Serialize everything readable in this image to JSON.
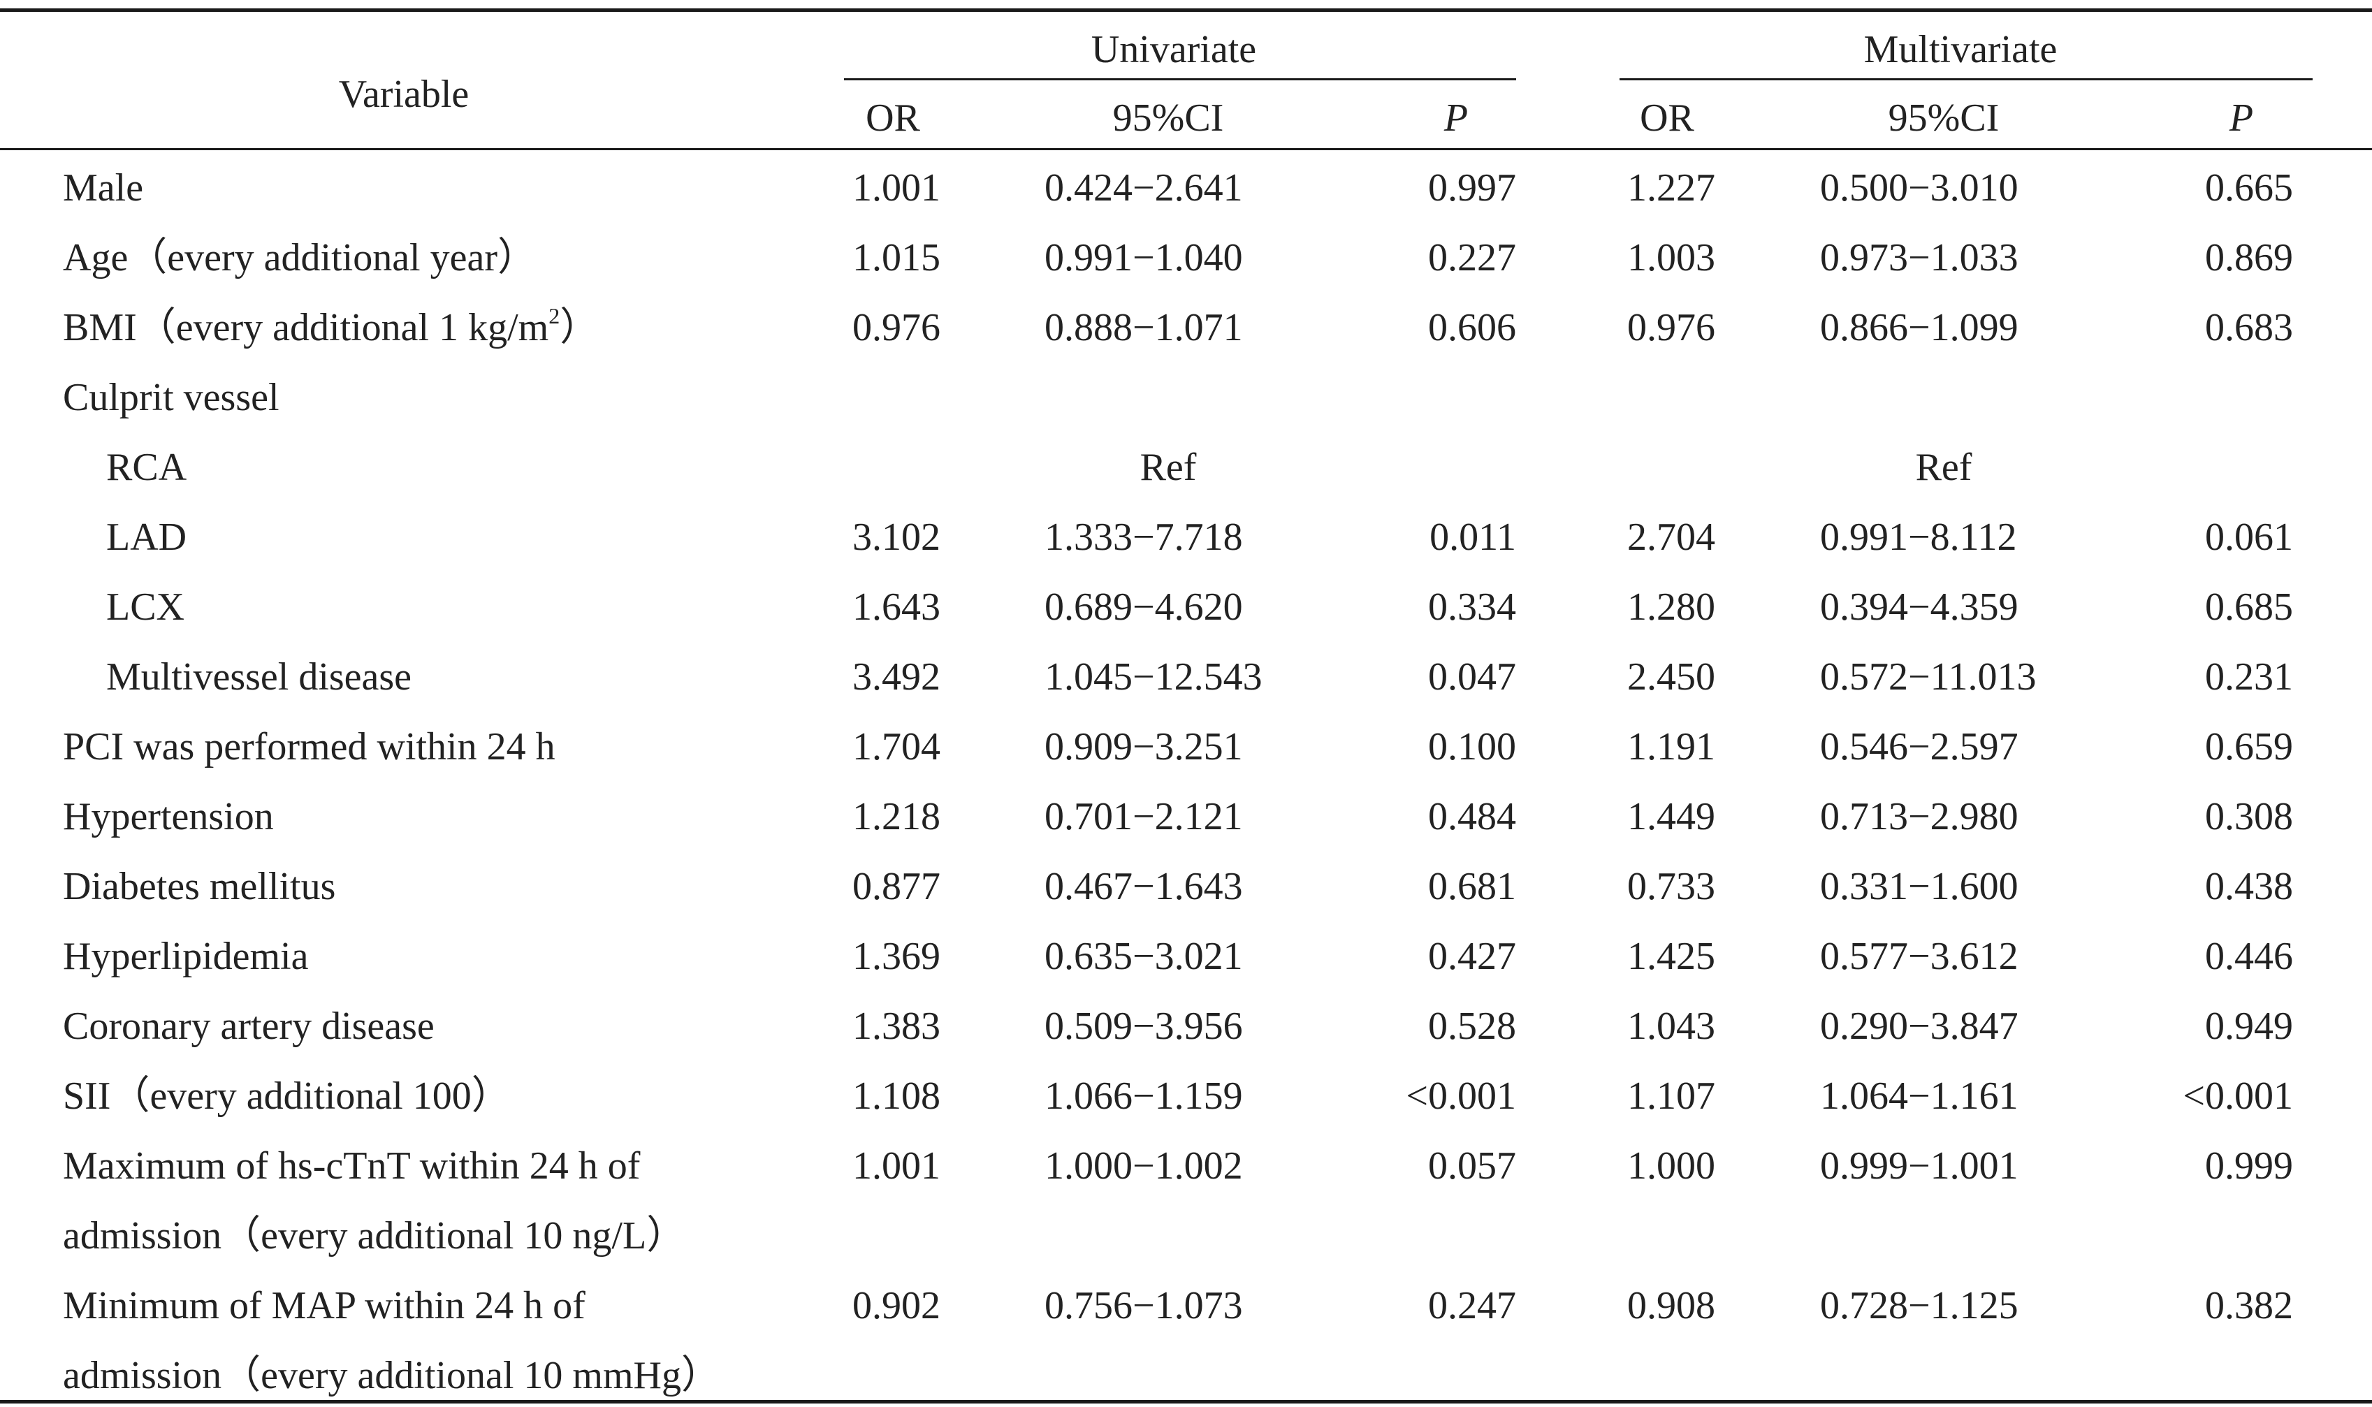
{
  "header": {
    "variable": "Variable",
    "univariate": "Univariate",
    "multivariate": "Multivariate",
    "or": "OR",
    "ci": "95%CI",
    "p": "P"
  },
  "rows": [
    {
      "label": "Male",
      "indent": false,
      "u_or": "1.001",
      "u_ci": "0.424−2.641",
      "u_p": "0.997",
      "m_or": "1.227",
      "m_ci": "0.500−3.010",
      "m_p": "0.665"
    },
    {
      "label": "Age（every additional year）",
      "indent": false,
      "u_or": "1.015",
      "u_ci": "0.991−1.040",
      "u_p": "0.227",
      "m_or": "1.003",
      "m_ci": "0.973−1.033",
      "m_p": "0.869"
    },
    {
      "label": "BMI（every additional 1 kg/m",
      "label_sup": "2",
      "label_tail": "）",
      "indent": false,
      "u_or": "0.976",
      "u_ci": "0.888−1.071",
      "u_p": "0.606",
      "m_or": "0.976",
      "m_ci": "0.866−1.099",
      "m_p": "0.683"
    },
    {
      "label": "Culprit vessel",
      "indent": false
    },
    {
      "label": "RCA",
      "indent": true,
      "u_ref": "Ref",
      "m_ref": "Ref"
    },
    {
      "label": "LAD",
      "indent": true,
      "u_or": "3.102",
      "u_ci": "1.333−7.718",
      "u_p": "0.011",
      "m_or": "2.704",
      "m_ci": "0.991−8.112",
      "m_p": "0.061"
    },
    {
      "label": "LCX",
      "indent": true,
      "u_or": "1.643",
      "u_ci": "0.689−4.620",
      "u_p": "0.334",
      "m_or": "1.280",
      "m_ci": "0.394−4.359",
      "m_p": "0.685"
    },
    {
      "label": "Multivessel disease",
      "indent": true,
      "u_or": "3.492",
      "u_ci": "1.045−12.543",
      "u_p": "0.047",
      "m_or": "2.450",
      "m_ci": "0.572−11.013",
      "m_p": "0.231"
    },
    {
      "label": "PCI was performed within 24 h",
      "indent": false,
      "u_or": "1.704",
      "u_ci": "0.909−3.251",
      "u_p": "0.100",
      "m_or": "1.191",
      "m_ci": "0.546−2.597",
      "m_p": "0.659"
    },
    {
      "label": "Hypertension",
      "indent": false,
      "u_or": "1.218",
      "u_ci": "0.701−2.121",
      "u_p": "0.484",
      "m_or": "1.449",
      "m_ci": "0.713−2.980",
      "m_p": "0.308"
    },
    {
      "label": "Diabetes mellitus",
      "indent": false,
      "u_or": "0.877",
      "u_ci": "0.467−1.643",
      "u_p": "0.681",
      "m_or": "0.733",
      "m_ci": "0.331−1.600",
      "m_p": "0.438"
    },
    {
      "label": "Hyperlipidemia",
      "indent": false,
      "u_or": "1.369",
      "u_ci": "0.635−3.021",
      "u_p": "0.427",
      "m_or": "1.425",
      "m_ci": "0.577−3.612",
      "m_p": "0.446"
    },
    {
      "label": "Coronary artery disease",
      "indent": false,
      "u_or": "1.383",
      "u_ci": "0.509−3.956",
      "u_p": "0.528",
      "m_or": "1.043",
      "m_ci": "0.290−3.847",
      "m_p": "0.949"
    },
    {
      "label": "SII（every additional 100）",
      "indent": false,
      "u_or": "1.108",
      "u_ci": "1.066−1.159",
      "u_p": "<0.001",
      "m_or": "1.107",
      "m_ci": "1.064−1.161",
      "m_p": "<0.001"
    },
    {
      "label": "Maximum of hs-cTnT within 24 h of",
      "indent": false,
      "u_or": "1.001",
      "u_ci": "1.000−1.002",
      "u_p": "0.057",
      "m_or": "1.000",
      "m_ci": "0.999−1.001",
      "m_p": "0.999"
    },
    {
      "label": "admission（every additional 10 ng/L）",
      "indent": false
    },
    {
      "label": "Minimum of MAP within 24 h of",
      "indent": false,
      "u_or": "0.902",
      "u_ci": "0.756−1.073",
      "u_p": "0.247",
      "m_or": "0.908",
      "m_ci": "0.728−1.125",
      "m_p": "0.382"
    },
    {
      "label": "admission（every additional 10 mmHg）",
      "indent": false
    }
  ]
}
